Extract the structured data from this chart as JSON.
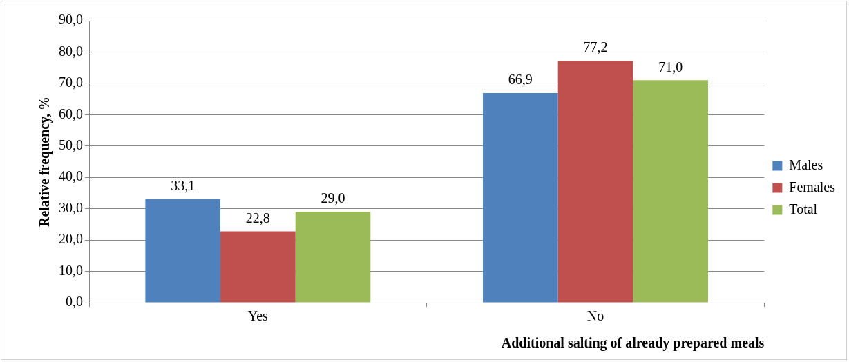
{
  "chart_data": {
    "type": "bar",
    "xlabel": "Additional salting of already prepared meals",
    "ylabel": "Relative frequency, %",
    "categories": [
      "Yes",
      "No"
    ],
    "series": [
      {
        "name": "Males",
        "color": "#4f81bd",
        "values": [
          33.1,
          66.9
        ],
        "value_labels": [
          "33,1",
          "66,9"
        ]
      },
      {
        "name": "Females",
        "color": "#c0504d",
        "values": [
          22.8,
          77.2
        ],
        "value_labels": [
          "22,8",
          "77,2"
        ]
      },
      {
        "name": "Total",
        "color": "#9bbb59",
        "values": [
          29.0,
          71.0
        ],
        "value_labels": [
          "29,0",
          "71,0"
        ]
      }
    ],
    "ylim": [
      0,
      90
    ],
    "yticks": [
      {
        "value": 0,
        "label": "0,0"
      },
      {
        "value": 10,
        "label": "10,0"
      },
      {
        "value": 20,
        "label": "20,0"
      },
      {
        "value": 30,
        "label": "30,0"
      },
      {
        "value": 40,
        "label": "40,0"
      },
      {
        "value": 50,
        "label": "50,0"
      },
      {
        "value": 60,
        "label": "60,0"
      },
      {
        "value": 70,
        "label": "70,0"
      },
      {
        "value": 80,
        "label": "80,0"
      },
      {
        "value": 90,
        "label": "90,0"
      }
    ],
    "grid": "y",
    "legend": "right"
  }
}
